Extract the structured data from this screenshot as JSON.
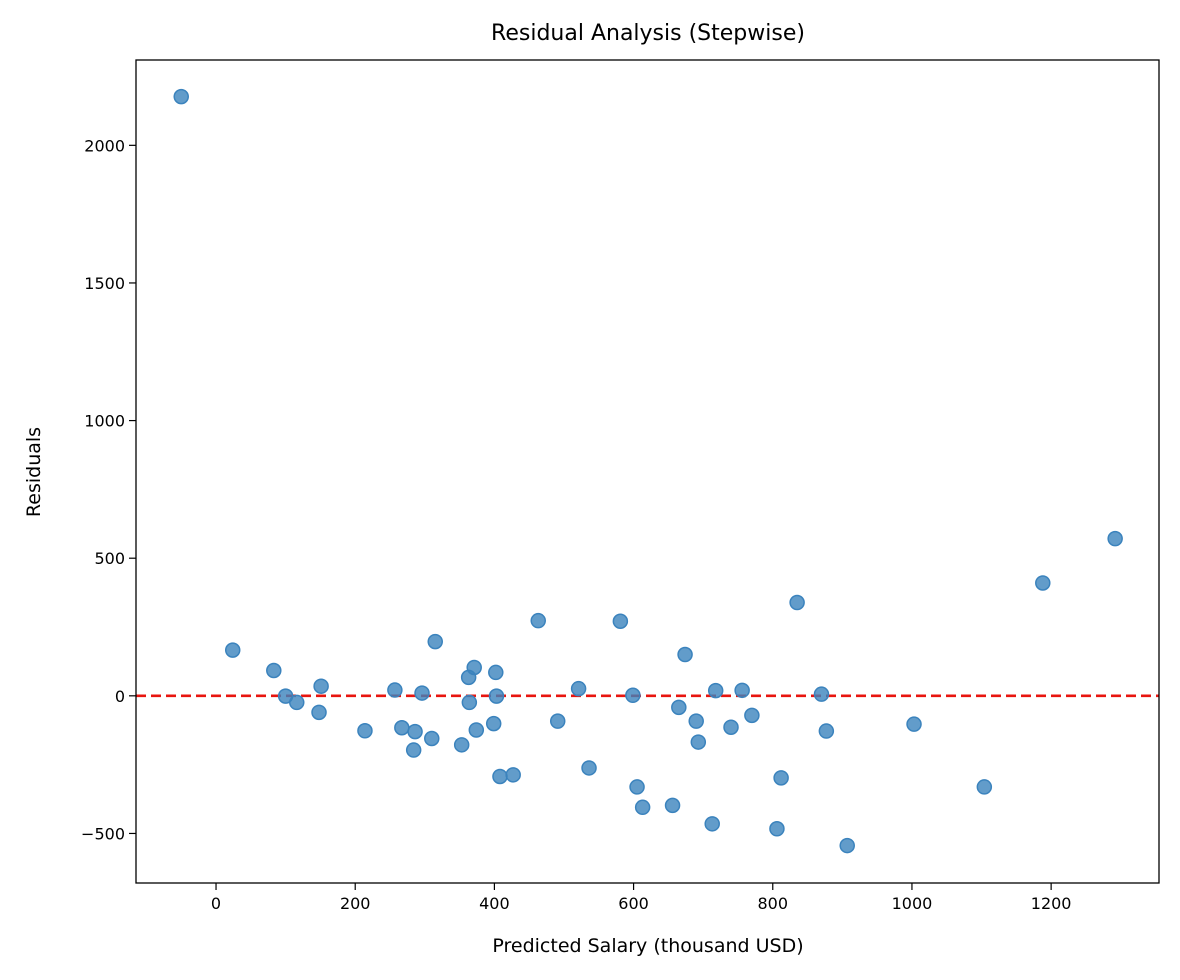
{
  "chart_data": {
    "type": "scatter",
    "title": "Residual Analysis (Stepwise)",
    "xlabel": "Predicted Salary (thousand USD)",
    "ylabel": "Residuals",
    "xlim": [
      -115,
      1355
    ],
    "ylim": [
      -680,
      2310
    ],
    "xticks": [
      {
        "value": 0,
        "label": "0"
      },
      {
        "value": 200,
        "label": "200"
      },
      {
        "value": 400,
        "label": "400"
      },
      {
        "value": 600,
        "label": "600"
      },
      {
        "value": 800,
        "label": "800"
      },
      {
        "value": 1000,
        "label": "1000"
      },
      {
        "value": 1200,
        "label": "1200"
      }
    ],
    "yticks": [
      {
        "value": -500,
        "label": "−500"
      },
      {
        "value": 0,
        "label": "0"
      },
      {
        "value": 500,
        "label": "500"
      },
      {
        "value": 1000,
        "label": "1000"
      },
      {
        "value": 1500,
        "label": "1500"
      },
      {
        "value": 2000,
        "label": "2000"
      }
    ],
    "reference_line": {
      "y": 0,
      "style": "dashed",
      "color": "#e8150f"
    },
    "point_color": "#3b83bd",
    "grid": false,
    "points": [
      {
        "x": -50,
        "y": 2177
      },
      {
        "x": 24,
        "y": 166
      },
      {
        "x": 83,
        "y": 92
      },
      {
        "x": 100,
        "y": -1
      },
      {
        "x": 116,
        "y": -24
      },
      {
        "x": 148,
        "y": -60
      },
      {
        "x": 151,
        "y": 35
      },
      {
        "x": 214,
        "y": -127
      },
      {
        "x": 257,
        "y": 21
      },
      {
        "x": 267,
        "y": -116
      },
      {
        "x": 284,
        "y": -197
      },
      {
        "x": 286,
        "y": -130
      },
      {
        "x": 296,
        "y": 10
      },
      {
        "x": 310,
        "y": -155
      },
      {
        "x": 315,
        "y": 197
      },
      {
        "x": 353,
        "y": -178
      },
      {
        "x": 363,
        "y": 67
      },
      {
        "x": 364,
        "y": -24
      },
      {
        "x": 371,
        "y": 103
      },
      {
        "x": 374,
        "y": -124
      },
      {
        "x": 399,
        "y": -101
      },
      {
        "x": 402,
        "y": 85
      },
      {
        "x": 403,
        "y": -1
      },
      {
        "x": 408,
        "y": -293
      },
      {
        "x": 427,
        "y": -287
      },
      {
        "x": 463,
        "y": 273
      },
      {
        "x": 491,
        "y": -92
      },
      {
        "x": 521,
        "y": 26
      },
      {
        "x": 536,
        "y": -262
      },
      {
        "x": 581,
        "y": 271
      },
      {
        "x": 599,
        "y": 2
      },
      {
        "x": 605,
        "y": -331
      },
      {
        "x": 613,
        "y": -405
      },
      {
        "x": 656,
        "y": -398
      },
      {
        "x": 665,
        "y": -42
      },
      {
        "x": 674,
        "y": 150
      },
      {
        "x": 690,
        "y": -92
      },
      {
        "x": 693,
        "y": -168
      },
      {
        "x": 713,
        "y": -465
      },
      {
        "x": 718,
        "y": 19
      },
      {
        "x": 740,
        "y": -114
      },
      {
        "x": 756,
        "y": 20
      },
      {
        "x": 770,
        "y": -71
      },
      {
        "x": 806,
        "y": -483
      },
      {
        "x": 812,
        "y": -298
      },
      {
        "x": 835,
        "y": 339
      },
      {
        "x": 870,
        "y": 6
      },
      {
        "x": 877,
        "y": -128
      },
      {
        "x": 907,
        "y": -544
      },
      {
        "x": 1003,
        "y": -103
      },
      {
        "x": 1104,
        "y": -331
      },
      {
        "x": 1188,
        "y": 410
      },
      {
        "x": 1292,
        "y": 571
      }
    ]
  }
}
